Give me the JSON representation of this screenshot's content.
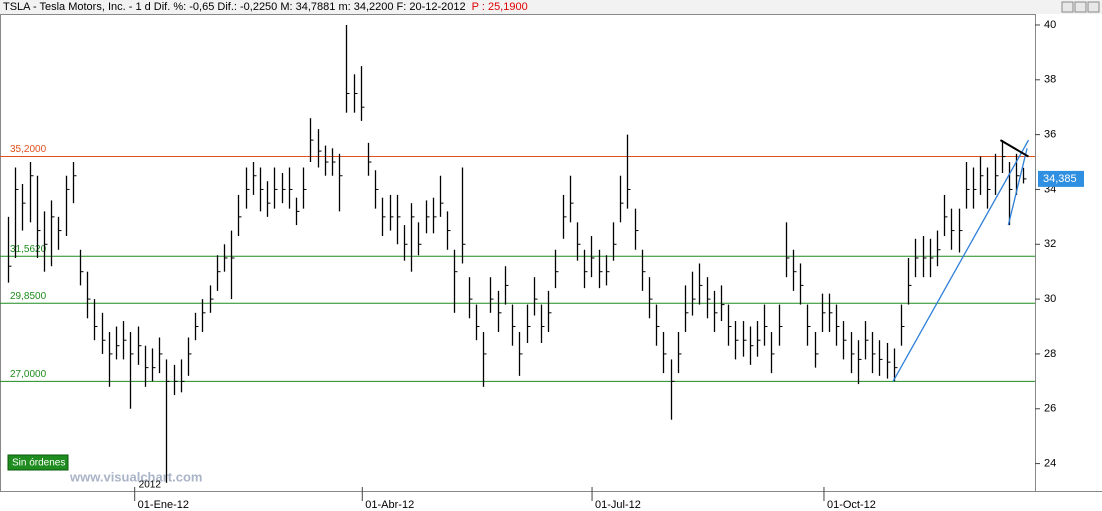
{
  "chart_data": {
    "type": "ohlc",
    "title": "TSLA - Tesla Motors, Inc. - 1 d Dif. %: -0,65 Dif.: -0,2250 M: 34,7881 m: 34,2200 F: 20-12-2012",
    "price_label": "P : 25,1900",
    "color": "#000000",
    "bars": [
      [
        33,
        30.6,
        31.2
      ],
      [
        34.8,
        31.5,
        34
      ],
      [
        34.2,
        32.5,
        33.5
      ],
      [
        35,
        32.8,
        34.5
      ],
      [
        34.5,
        31.5,
        32.5
      ],
      [
        33.2,
        31,
        32
      ],
      [
        33.6,
        31.2,
        33
      ],
      [
        33,
        31.8,
        32.5
      ],
      [
        34.5,
        32.3,
        34
      ],
      [
        35,
        33.5,
        34.5
      ],
      [
        31.8,
        30.5,
        31
      ],
      [
        31,
        29.3,
        30
      ],
      [
        30,
        28.5,
        29
      ],
      [
        29.5,
        28,
        28.5
      ],
      [
        28.8,
        26.8,
        28
      ],
      [
        29,
        27.8,
        28.3
      ],
      [
        29.2,
        27.8,
        28.5
      ],
      [
        28.8,
        26,
        28
      ],
      [
        29,
        27.6,
        28.3
      ],
      [
        28.3,
        26.8,
        27.5
      ],
      [
        28.2,
        27,
        27.5
      ],
      [
        28.6,
        27.3,
        28
      ],
      [
        27.8,
        23.3,
        27
      ],
      [
        27.6,
        26.5,
        27
      ],
      [
        27.8,
        26.6,
        27
      ],
      [
        28.6,
        27.2,
        28
      ],
      [
        29.5,
        28.5,
        29
      ],
      [
        30,
        28.8,
        29.5
      ],
      [
        30.5,
        29.5,
        30
      ],
      [
        31.6,
        30.3,
        31
      ],
      [
        32,
        31,
        31.5
      ],
      [
        32.5,
        30,
        31.5
      ],
      [
        33.8,
        32.3,
        33
      ],
      [
        34.8,
        33.3,
        34
      ],
      [
        35,
        33.8,
        34.5
      ],
      [
        34.8,
        33.2,
        34
      ],
      [
        34.3,
        33,
        33.5
      ],
      [
        34.8,
        33.3,
        34
      ],
      [
        34.6,
        33.5,
        34
      ],
      [
        34.8,
        33.3,
        34
      ],
      [
        33.7,
        32.7,
        33.2
      ],
      [
        34.8,
        33.3,
        34
      ],
      [
        36.6,
        35,
        35.8
      ],
      [
        36.2,
        34.8,
        35.4
      ],
      [
        35.6,
        34.5,
        35
      ],
      [
        35.5,
        34.5,
        35
      ],
      [
        35.3,
        33.2,
        34.5
      ],
      [
        40,
        36.8,
        37.5
      ],
      [
        38.2,
        36.8,
        37.5
      ],
      [
        38.5,
        36.5,
        37
      ],
      [
        35.7,
        34.5,
        35
      ],
      [
        34.7,
        33.3,
        34
      ],
      [
        33.7,
        32.3,
        33
      ],
      [
        33.8,
        32.5,
        33
      ],
      [
        33.8,
        32,
        33
      ],
      [
        32.7,
        31.4,
        32
      ],
      [
        33.5,
        31,
        33
      ],
      [
        32.8,
        31.6,
        32
      ],
      [
        33.6,
        32.4,
        33
      ],
      [
        33.7,
        32.4,
        33
      ],
      [
        34.5,
        33,
        33.5
      ],
      [
        33.2,
        31.8,
        32.5
      ],
      [
        31.8,
        29.5,
        31
      ],
      [
        34.8,
        31.3,
        32
      ],
      [
        30.8,
        29.3,
        30
      ],
      [
        29.8,
        28.5,
        29
      ],
      [
        28.8,
        26.8,
        28
      ],
      [
        30.8,
        29.5,
        30
      ],
      [
        30.3,
        28.8,
        29.5
      ],
      [
        31.2,
        29.8,
        30.5
      ],
      [
        29.8,
        28.3,
        29
      ],
      [
        28.8,
        27.2,
        28
      ],
      [
        29.8,
        28.4,
        29
      ],
      [
        30.8,
        29.4,
        30
      ],
      [
        29.8,
        28.4,
        29
      ],
      [
        30.3,
        28.8,
        29.5
      ],
      [
        31.8,
        30.4,
        31
      ],
      [
        33.8,
        32.2,
        33
      ],
      [
        34.5,
        32.8,
        33.5
      ],
      [
        32.8,
        31.4,
        32
      ],
      [
        31.8,
        30.4,
        31
      ],
      [
        32.3,
        30.8,
        31.5
      ],
      [
        31.8,
        30.4,
        31
      ],
      [
        31.6,
        30.5,
        31
      ],
      [
        32.8,
        31.4,
        32
      ],
      [
        34.5,
        32.8,
        33.5
      ],
      [
        36,
        33.3,
        34
      ],
      [
        33.3,
        31.8,
        32.5
      ],
      [
        31.8,
        30.3,
        31
      ],
      [
        30.8,
        29.3,
        30
      ],
      [
        29.8,
        28.3,
        29
      ],
      [
        28.8,
        27.3,
        28
      ],
      [
        27.8,
        25.6,
        27
      ],
      [
        28.8,
        27.3,
        28
      ],
      [
        30.5,
        28.8,
        29.5
      ],
      [
        31,
        29.4,
        30
      ],
      [
        31.3,
        29.8,
        30.5
      ],
      [
        30.8,
        29.3,
        30
      ],
      [
        30.3,
        28.8,
        29.5
      ],
      [
        30.5,
        29.2,
        29.8
      ],
      [
        29.8,
        28.3,
        29
      ],
      [
        29.2,
        27.8,
        28.5
      ],
      [
        29.2,
        27.9,
        28.5
      ],
      [
        29,
        27.6,
        28.3
      ],
      [
        29.2,
        27.9,
        28.5
      ],
      [
        29.8,
        28.3,
        29
      ],
      [
        28.8,
        27.3,
        28
      ],
      [
        29.8,
        28.3,
        29
      ],
      [
        32.8,
        30.8,
        31.5
      ],
      [
        31.8,
        30.3,
        31
      ],
      [
        31.3,
        29.8,
        30.5
      ],
      [
        29.8,
        28.3,
        29
      ],
      [
        28.8,
        27.5,
        28
      ],
      [
        30.2,
        28.8,
        29.5
      ],
      [
        30.2,
        28.8,
        29.5
      ],
      [
        29.8,
        28.3,
        29
      ],
      [
        29.2,
        27.8,
        28.5
      ],
      [
        28.8,
        27.3,
        28
      ],
      [
        28.5,
        26.9,
        27.8
      ],
      [
        29.2,
        27.8,
        28.5
      ],
      [
        28.8,
        27.3,
        28
      ],
      [
        28.5,
        27.2,
        27.8
      ],
      [
        28.4,
        27.1,
        27.7
      ],
      [
        28.2,
        27,
        27.5
      ],
      [
        29.8,
        28.3,
        29
      ],
      [
        31.5,
        29.8,
        30.5
      ],
      [
        32.2,
        30.8,
        31.5
      ],
      [
        32.3,
        30.8,
        31.5
      ],
      [
        32.2,
        30.8,
        31.5
      ],
      [
        32.5,
        31.2,
        31.8
      ],
      [
        33.8,
        32.3,
        33
      ],
      [
        33.3,
        31.8,
        32.5
      ],
      [
        33.3,
        31.7,
        32.5
      ],
      [
        35,
        33.3,
        34
      ],
      [
        34.8,
        33.3,
        34
      ],
      [
        35.2,
        33.8,
        34.5
      ],
      [
        34.8,
        33.3,
        34
      ],
      [
        35.3,
        33.8,
        34.5
      ],
      [
        35.8,
        34.6,
        35.2
      ],
      [
        35,
        32.7,
        34
      ],
      [
        35.3,
        33.8,
        34.5
      ],
      [
        34.79,
        34.22,
        34.385
      ]
    ],
    "xlim": [
      -1.1,
      142.6
    ],
    "xticks": [
      {
        "value": 17.6,
        "label": "01-Ene-12"
      },
      {
        "value": 49.2,
        "label": "01-Abr-12"
      },
      {
        "value": 81.1,
        "label": "01-Jul-12"
      },
      {
        "value": 113.3,
        "label": "01-Oct-12"
      }
    ],
    "year_label": "2012",
    "ylim": [
      23.0,
      40.4
    ],
    "yticks": [
      24,
      26,
      28,
      30,
      32,
      34,
      36,
      38,
      40
    ],
    "levels": [
      {
        "value": 35.2,
        "label": "35,2000",
        "color": "#e0501e"
      },
      {
        "value": 31.562,
        "label": "31,5620",
        "color": "#1e8c1e"
      },
      {
        "value": 29.85,
        "label": "29,8500",
        "color": "#1e8c1e"
      },
      {
        "value": 27.0,
        "label": "27,0000",
        "color": "#1e8c1e"
      }
    ],
    "trendlines": [
      {
        "color": "#2f7fd8",
        "x": [
          122.9,
          141.7
        ],
        "y": [
          27.0,
          35.8
        ]
      },
      {
        "color": "#2f7fd8",
        "x": [
          138.9,
          141.5
        ],
        "y": [
          32.7,
          35.5
        ]
      },
      {
        "color": "#000000",
        "x": [
          137.8,
          141.7
        ],
        "y": [
          35.8,
          35.2
        ]
      }
    ],
    "last_price": {
      "value": 34.385,
      "label": "34,385",
      "color": "#2f8fe0"
    },
    "status": "Sin órdenes",
    "watermark": "www.visualchart.com"
  }
}
